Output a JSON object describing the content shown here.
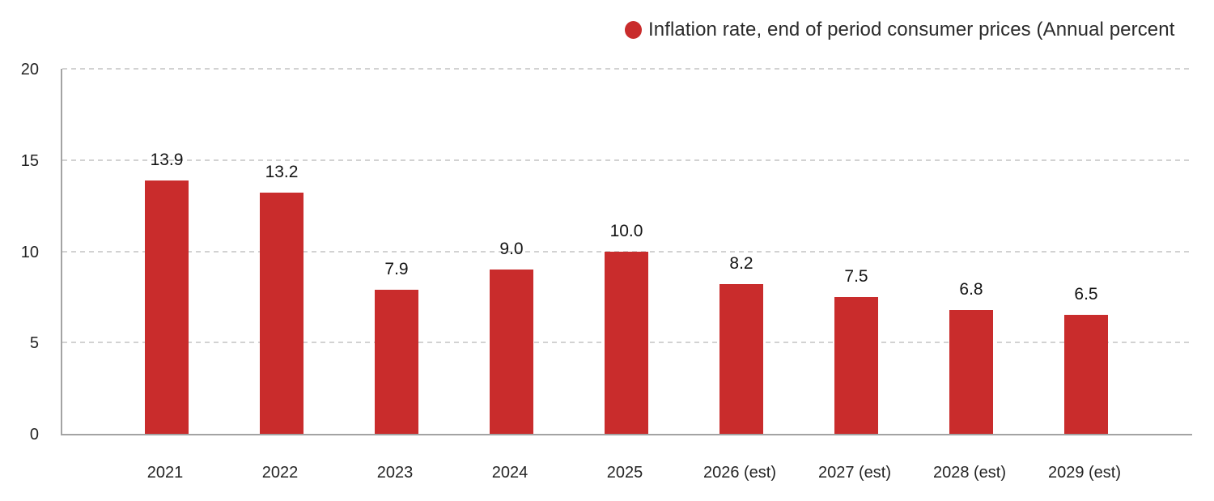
{
  "chart_data": {
    "type": "bar",
    "title": "",
    "legend": "Inflation rate, end of period consumer prices (Annual percent",
    "legend_position": "top-center",
    "categories": [
      "2021",
      "2022",
      "2023",
      "2024",
      "2025",
      "2026 (est)",
      "2027 (est)",
      "2028 (est)",
      "2029 (est)"
    ],
    "values": [
      13.9,
      13.2,
      7.9,
      9.0,
      10.0,
      8.2,
      7.5,
      6.8,
      6.5
    ],
    "value_labels": [
      "13.9",
      "13.2",
      "7.9",
      "9.0",
      "10.0",
      "8.2",
      "7.5",
      "6.8",
      "6.5"
    ],
    "xlabel": "",
    "ylabel": "",
    "ylim": [
      0,
      20
    ],
    "yticks": [
      0,
      5,
      10,
      15,
      20
    ],
    "ytick_labels": [
      "0",
      "5",
      "10",
      "15",
      "20"
    ],
    "grid": "horizontal-dashed",
    "colors": {
      "bar": "#c92c2c",
      "legend_dot": "#c92c2c",
      "axis_line": "#a3a3a3",
      "gridline": "#d2d2d2",
      "text": "#242424",
      "value_label_text": "#141414",
      "background": "#ffffff"
    }
  }
}
